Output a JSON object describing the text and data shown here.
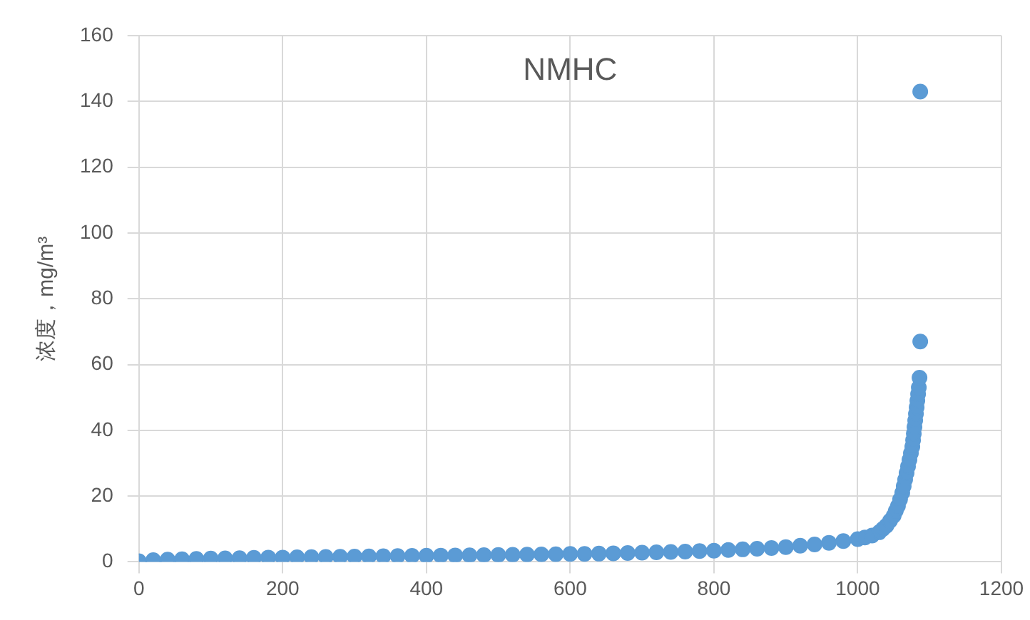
{
  "chart_data": {
    "type": "scatter",
    "title": "NMHC",
    "ylabel": "浓度，mg/m³",
    "x": [
      0,
      20,
      40,
      60,
      80,
      100,
      120,
      140,
      160,
      180,
      200,
      220,
      240,
      260,
      280,
      300,
      320,
      340,
      360,
      380,
      400,
      420,
      440,
      460,
      480,
      500,
      520,
      540,
      560,
      580,
      600,
      620,
      640,
      660,
      680,
      700,
      720,
      740,
      760,
      780,
      800,
      820,
      840,
      860,
      880,
      900,
      920,
      940,
      960,
      980,
      1000,
      1010,
      1020,
      1030,
      1035,
      1040,
      1045,
      1050,
      1053,
      1056,
      1059,
      1062,
      1064,
      1066,
      1068,
      1070,
      1072,
      1074,
      1076,
      1077,
      1078,
      1079,
      1080,
      1081,
      1082,
      1083,
      1084,
      1085,
      1086,
      1087,
      1087
    ],
    "series": [
      {
        "color": "#5b9bd5",
        "values": [
          0.2,
          0.5,
          0.7,
          0.8,
          0.9,
          1.0,
          1.05,
          1.1,
          1.2,
          1.3,
          1.3,
          1.4,
          1.45,
          1.5,
          1.55,
          1.6,
          1.65,
          1.7,
          1.75,
          1.8,
          1.85,
          1.9,
          1.95,
          2.0,
          2.05,
          2.1,
          2.15,
          2.2,
          2.25,
          2.3,
          2.4,
          2.4,
          2.5,
          2.6,
          2.7,
          2.8,
          2.9,
          3.0,
          3.1,
          3.3,
          3.4,
          3.6,
          3.8,
          4.0,
          4.2,
          4.5,
          4.9,
          5.3,
          5.8,
          6.3,
          6.9,
          7.4,
          8.0,
          9.0,
          10,
          11,
          12.5,
          14,
          15.5,
          17,
          19,
          21,
          23,
          25,
          27,
          29,
          31,
          33,
          35,
          37,
          39,
          41,
          43,
          45,
          47,
          49,
          51,
          53,
          56,
          67,
          143
        ]
      }
    ],
    "xlim": [
      0,
      1200
    ],
    "xticks": [
      0,
      200,
      400,
      600,
      800,
      {
        "value": 1000,
        "label": "1000"
      },
      {
        "value": 1200,
        "label": "1200"
      }
    ],
    "ylim": [
      0,
      160
    ],
    "yticks": [
      0,
      20,
      40,
      60,
      80,
      100,
      120,
      140,
      160
    ],
    "grid": true,
    "legend": false,
    "marker": "circle"
  }
}
